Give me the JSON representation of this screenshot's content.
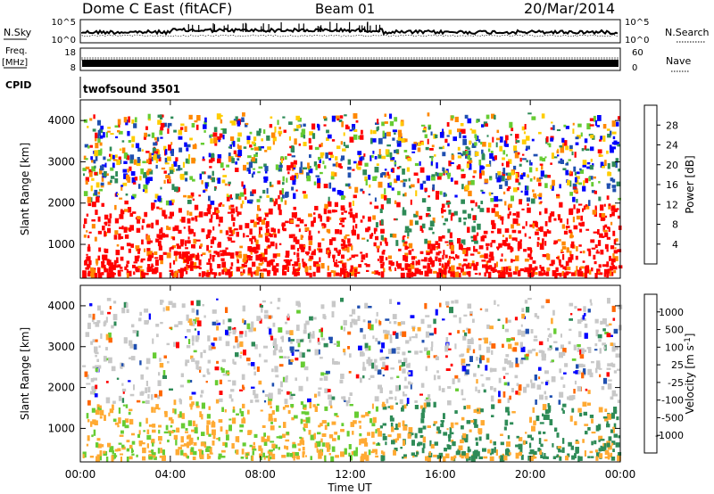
{
  "header": {
    "title": "Dome C East (fitACF)",
    "beam": "Beam 01",
    "date": "20/Mar/2014"
  },
  "params": {
    "nsky_label": "N.Sky",
    "nsearch_label": "N.Search",
    "freq_label": "Freq.",
    "freq_unit": "[MHz]",
    "nave_label": "Nave",
    "cpid_label": "CPID",
    "cpid_value": "twofsound 3501",
    "left_ticks_noise": [
      "10^5",
      "10^0"
    ],
    "right_ticks_noise": [
      "10^5",
      "10^0"
    ],
    "left_ticks_freq": [
      "18",
      "8"
    ],
    "right_ticks_nave": [
      "60",
      "0"
    ]
  },
  "time_axis": {
    "label": "Time UT",
    "ticks": [
      "00:00",
      "04:00",
      "08:00",
      "12:00",
      "16:00",
      "20:00",
      "00:00"
    ]
  },
  "chart_data": [
    {
      "type": "heatmap",
      "title": "",
      "xlabel": "",
      "ylabel": "Slant Range [km]",
      "y_ticks": [
        "1000",
        "2000",
        "3000",
        "4000"
      ],
      "ylim": [
        180,
        4500
      ],
      "colorbar_label": "Power [dB]",
      "colorbar_ticks": [
        "28",
        "24",
        "20",
        "16",
        "12",
        "8",
        "4"
      ],
      "colors": [
        "#0000ff",
        "#1f4fb0",
        "#2e8b57",
        "#66cc33",
        "#ffcc00",
        "#ff8800",
        "#ff0000"
      ],
      "dominant_color": "#ff2200"
    },
    {
      "type": "heatmap",
      "title": "",
      "xlabel": "Time UT",
      "ylabel": "Slant Range [km]",
      "y_ticks": [
        "1000",
        "2000",
        "3000",
        "4000"
      ],
      "ylim": [
        180,
        4500
      ],
      "colorbar_label": "Velocity [m s^-1]",
      "colorbar_ticks": [
        "1000",
        "500",
        "100",
        "25",
        "-25",
        "-100",
        "-500",
        "-1000"
      ],
      "colors": [
        "#ff0000",
        "#ff6600",
        "#ffaa33",
        "#c8c8c8",
        "#66cc33",
        "#2e8b57",
        "#1f4fb0",
        "#0000ff"
      ]
    }
  ]
}
